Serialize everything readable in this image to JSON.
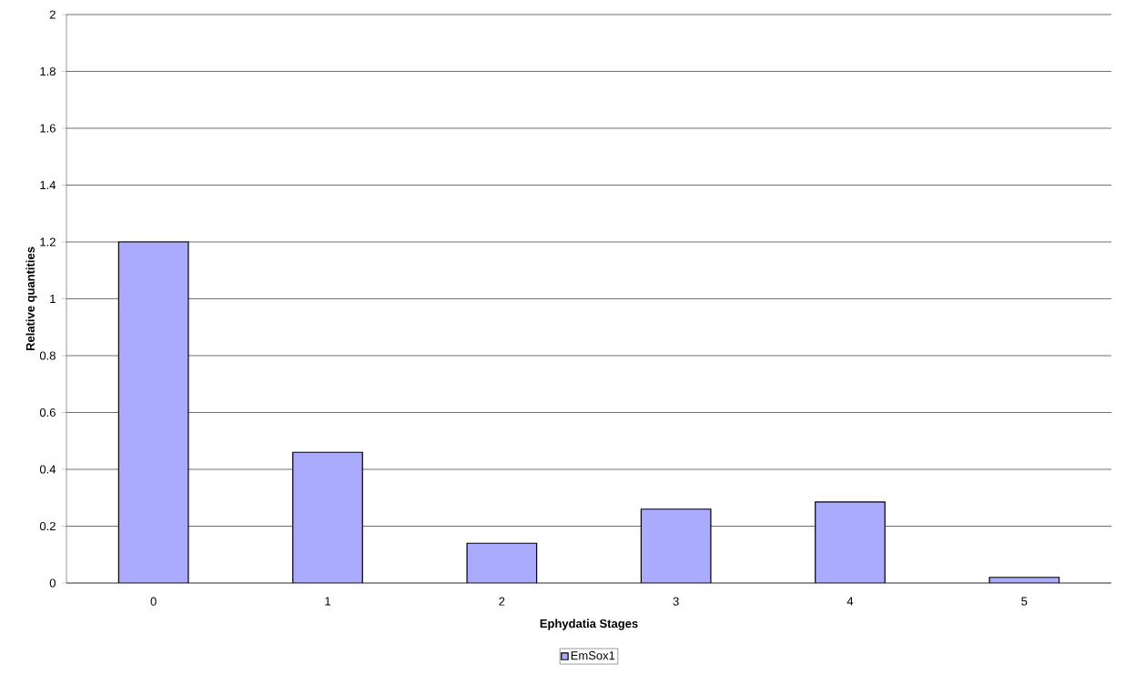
{
  "chart_data": {
    "type": "bar",
    "xlabel": "Ephydatia Stages",
    "ylabel": "Relative quantities",
    "categories": [
      "0",
      "1",
      "2",
      "3",
      "4",
      "5"
    ],
    "series": [
      {
        "name": "EmSox1",
        "color": "#aaaaff",
        "values": [
          1.2,
          0.46,
          0.14,
          0.26,
          0.285,
          0.02
        ]
      }
    ],
    "ylim": [
      0,
      2
    ],
    "yticks": [
      0,
      0.2,
      0.4,
      0.6,
      0.8,
      1,
      1.2,
      1.4,
      1.6,
      1.8,
      2
    ],
    "grid": "y",
    "legend": "bottom"
  }
}
